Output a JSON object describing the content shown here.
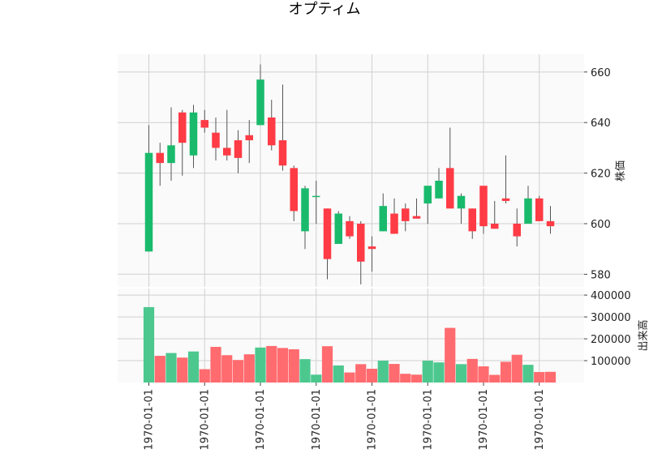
{
  "title": "オプティム",
  "chart_data": [
    {
      "type": "candlestick",
      "ylabel": "株価",
      "ylim": [
        575,
        667
      ],
      "yticks": [
        580,
        600,
        620,
        640,
        660
      ],
      "xtick_labels": [
        "1970-01-01",
        "1970-01-01",
        "1970-01-01",
        "1970-01-01",
        "1970-01-01",
        "1970-01-01",
        "1970-01-01",
        "1970-01-01"
      ],
      "xtick_indices": [
        0,
        5,
        10,
        15,
        20,
        25,
        30,
        35
      ],
      "up_color": "#1aba6c",
      "down_color": "#ff3b45",
      "ohlc": [
        {
          "o": 589,
          "h": 639,
          "l": 589,
          "c": 628
        },
        {
          "o": 628,
          "h": 632,
          "l": 615,
          "c": 624
        },
        {
          "o": 624,
          "h": 646,
          "l": 617,
          "c": 631
        },
        {
          "o": 644,
          "h": 645,
          "l": 619,
          "c": 632
        },
        {
          "o": 627,
          "h": 647,
          "l": 622,
          "c": 644
        },
        {
          "o": 641,
          "h": 645,
          "l": 636,
          "c": 638
        },
        {
          "o": 636,
          "h": 642,
          "l": 625,
          "c": 630
        },
        {
          "o": 630,
          "h": 645,
          "l": 625,
          "c": 627
        },
        {
          "o": 633,
          "h": 637,
          "l": 620,
          "c": 626
        },
        {
          "o": 635,
          "h": 641,
          "l": 624,
          "c": 633
        },
        {
          "o": 639,
          "h": 663,
          "l": 639,
          "c": 657
        },
        {
          "o": 642,
          "h": 649,
          "l": 629,
          "c": 631
        },
        {
          "o": 633,
          "h": 655,
          "l": 621,
          "c": 623
        },
        {
          "o": 622,
          "h": 623,
          "l": 601,
          "c": 605
        },
        {
          "o": 597,
          "h": 615,
          "l": 590,
          "c": 614
        },
        {
          "o": 611,
          "h": 617,
          "l": 600,
          "c": 611
        },
        {
          "o": 606,
          "h": 606,
          "l": 578,
          "c": 586
        },
        {
          "o": 592,
          "h": 605,
          "l": 592,
          "c": 604
        },
        {
          "o": 601,
          "h": 603,
          "l": 594,
          "c": 595
        },
        {
          "o": 600,
          "h": 601,
          "l": 576,
          "c": 585
        },
        {
          "o": 591,
          "h": 595,
          "l": 581,
          "c": 590
        },
        {
          "o": 597,
          "h": 612,
          "l": 597,
          "c": 607
        },
        {
          "o": 604,
          "h": 610,
          "l": 596,
          "c": 596
        },
        {
          "o": 606,
          "h": 608,
          "l": 597,
          "c": 601
        },
        {
          "o": 603,
          "h": 610,
          "l": 602,
          "c": 602
        },
        {
          "o": 608,
          "h": 615,
          "l": 600,
          "c": 615
        },
        {
          "o": 610,
          "h": 622,
          "l": 610,
          "c": 617
        },
        {
          "o": 622,
          "h": 638,
          "l": 606,
          "c": 606
        },
        {
          "o": 606,
          "h": 612,
          "l": 600,
          "c": 611
        },
        {
          "o": 606,
          "h": 606,
          "l": 594,
          "c": 597
        },
        {
          "o": 615,
          "h": 615,
          "l": 596,
          "c": 599
        },
        {
          "o": 600,
          "h": 609,
          "l": 598,
          "c": 598
        },
        {
          "o": 610,
          "h": 627,
          "l": 608,
          "c": 609
        },
        {
          "o": 600,
          "h": 606,
          "l": 591,
          "c": 595
        },
        {
          "o": 600,
          "h": 615,
          "l": 600,
          "c": 610
        },
        {
          "o": 610,
          "h": 611,
          "l": 601,
          "c": 601
        },
        {
          "o": 601,
          "h": 607,
          "l": 596,
          "c": 599
        }
      ]
    },
    {
      "type": "bar",
      "ylabel": "出来高",
      "ylim": [
        0,
        430000
      ],
      "yticks": [
        100000,
        200000,
        300000,
        400000
      ],
      "ytick_labels": [
        "100000",
        "200000",
        "300000",
        "400000"
      ],
      "values": [
        345000,
        122000,
        135000,
        114000,
        142000,
        61000,
        163000,
        125000,
        103000,
        129000,
        160000,
        167000,
        158000,
        152000,
        107000,
        36000,
        166000,
        78000,
        46000,
        84000,
        63000,
        100000,
        85000,
        40000,
        36000,
        100000,
        92000,
        250000,
        84000,
        108000,
        74000,
        35000,
        95000,
        127000,
        81000,
        48000,
        49000
      ]
    }
  ]
}
